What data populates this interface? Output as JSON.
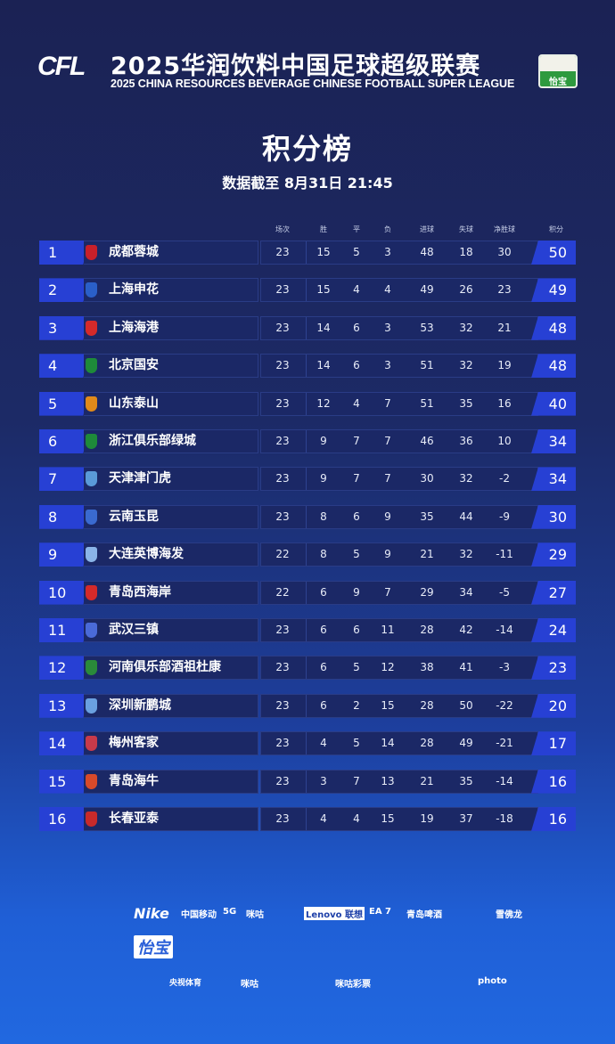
{
  "header": {
    "logo": "CFL",
    "title_cn": "2025华润饮料中国足球超级联赛",
    "title_en": "2025 CHINA RESOURCES BEVERAGE CHINESE FOOTBALL SUPER LEAGUE",
    "sponsor_badge": "怡宝"
  },
  "page_title": "积分榜",
  "update_time": "数据截至 8月31日 21:45",
  "columns": [
    "场次",
    "胜",
    "平",
    "负",
    "进球",
    "失球",
    "净胜球",
    "积分"
  ],
  "rows": [
    {
      "rank": "1",
      "team": "成都蓉城",
      "crest_color": "#c8202a",
      "played": "23",
      "w": "15",
      "d": "5",
      "l": "3",
      "gf": "48",
      "ga": "18",
      "gd": "30",
      "pts": "50"
    },
    {
      "rank": "2",
      "team": "上海申花",
      "crest_color": "#2a5fc8",
      "played": "23",
      "w": "15",
      "d": "4",
      "l": "4",
      "gf": "49",
      "ga": "26",
      "gd": "23",
      "pts": "49"
    },
    {
      "rank": "3",
      "team": "上海海港",
      "crest_color": "#d42a2a",
      "played": "23",
      "w": "14",
      "d": "6",
      "l": "3",
      "gf": "53",
      "ga": "32",
      "gd": "21",
      "pts": "48"
    },
    {
      "rank": "4",
      "team": "北京国安",
      "crest_color": "#1e8a3a",
      "played": "23",
      "w": "14",
      "d": "6",
      "l": "3",
      "gf": "51",
      "ga": "32",
      "gd": "19",
      "pts": "48"
    },
    {
      "rank": "5",
      "team": "山东泰山",
      "crest_color": "#e08a1a",
      "played": "23",
      "w": "12",
      "d": "4",
      "l": "7",
      "gf": "51",
      "ga": "35",
      "gd": "16",
      "pts": "40"
    },
    {
      "rank": "6",
      "team": "浙江俱乐部绿城",
      "crest_color": "#1e8a3a",
      "played": "23",
      "w": "9",
      "d": "7",
      "l": "7",
      "gf": "46",
      "ga": "36",
      "gd": "10",
      "pts": "34"
    },
    {
      "rank": "7",
      "team": "天津津门虎",
      "crest_color": "#5a9ad8",
      "played": "23",
      "w": "9",
      "d": "7",
      "l": "7",
      "gf": "30",
      "ga": "32",
      "gd": "-2",
      "pts": "34"
    },
    {
      "rank": "8",
      "team": "云南玉昆",
      "crest_color": "#3a6ad0",
      "played": "23",
      "w": "8",
      "d": "6",
      "l": "9",
      "gf": "35",
      "ga": "44",
      "gd": "-9",
      "pts": "30"
    },
    {
      "rank": "9",
      "team": "大连英博海发",
      "crest_color": "#8ab4e8",
      "played": "22",
      "w": "8",
      "d": "5",
      "l": "9",
      "gf": "21",
      "ga": "32",
      "gd": "-11",
      "pts": "29"
    },
    {
      "rank": "10",
      "team": "青岛西海岸",
      "crest_color": "#d42a2a",
      "played": "22",
      "w": "6",
      "d": "9",
      "l": "7",
      "gf": "29",
      "ga": "34",
      "gd": "-5",
      "pts": "27"
    },
    {
      "rank": "11",
      "team": "武汉三镇",
      "crest_color": "#4a6ad8",
      "played": "23",
      "w": "6",
      "d": "6",
      "l": "11",
      "gf": "28",
      "ga": "42",
      "gd": "-14",
      "pts": "24"
    },
    {
      "rank": "12",
      "team": "河南俱乐部酒祖杜康",
      "crest_color": "#2a8a3a",
      "played": "23",
      "w": "6",
      "d": "5",
      "l": "12",
      "gf": "38",
      "ga": "41",
      "gd": "-3",
      "pts": "23"
    },
    {
      "rank": "13",
      "team": "深圳新鹏城",
      "crest_color": "#6aa0e0",
      "played": "23",
      "w": "6",
      "d": "2",
      "l": "15",
      "gf": "28",
      "ga": "50",
      "gd": "-22",
      "pts": "20"
    },
    {
      "rank": "14",
      "team": "梅州客家",
      "crest_color": "#c83a4a",
      "played": "23",
      "w": "4",
      "d": "5",
      "l": "14",
      "gf": "28",
      "ga": "49",
      "gd": "-21",
      "pts": "17"
    },
    {
      "rank": "15",
      "team": "青岛海牛",
      "crest_color": "#d84a2a",
      "played": "23",
      "w": "3",
      "d": "7",
      "l": "13",
      "gf": "21",
      "ga": "35",
      "gd": "-14",
      "pts": "16"
    },
    {
      "rank": "16",
      "team": "长春亚泰",
      "crest_color": "#c82a2a",
      "played": "23",
      "w": "4",
      "d": "4",
      "l": "15",
      "gf": "19",
      "ga": "37",
      "gd": "-18",
      "pts": "16"
    }
  ],
  "sponsors": {
    "row1": [
      "Nike",
      "中国移动",
      "5G",
      "咪咕",
      "Lenovo 联想",
      "EA 7",
      "青岛啤酒",
      "雪佛龙",
      "怡宝"
    ],
    "row2": [
      "央视体育",
      "咪咕",
      "咪咕彩票",
      "photo"
    ]
  }
}
